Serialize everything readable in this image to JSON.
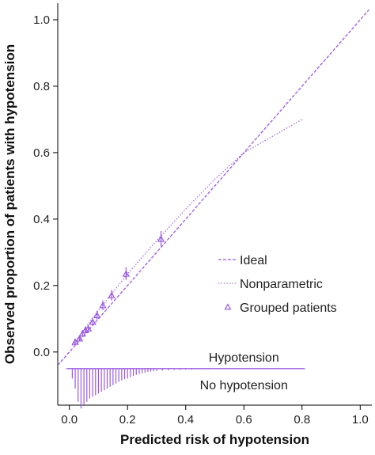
{
  "chart_data": {
    "type": "scatter",
    "xlabel": "Predicted risk of hypotension",
    "ylabel": "Observed proportion of patients with hypotension",
    "xlim": [
      -0.04,
      1.04
    ],
    "ylim": [
      -0.16,
      1.05
    ],
    "x_ticks": [
      0.0,
      0.2,
      0.4,
      0.6,
      0.8,
      1.0
    ],
    "x_tick_labels": [
      "0.0",
      "0.2",
      "0.4",
      "0.6",
      "0.8",
      "1.0"
    ],
    "y_ticks": [
      0.0,
      0.2,
      0.4,
      0.6,
      0.8,
      1.0
    ],
    "y_tick_labels": [
      "0.0",
      "0.2",
      "0.4",
      "0.6",
      "0.8",
      "1.0"
    ],
    "grid": false,
    "legend_position": "lower-right",
    "series_color": "#9b59e0",
    "series": [
      {
        "name": "Ideal",
        "style": "dashed",
        "x": [
          -0.04,
          1.03
        ],
        "y": [
          -0.04,
          1.03
        ]
      },
      {
        "name": "Nonparametric",
        "style": "dotted",
        "x": [
          0.01,
          0.1,
          0.2,
          0.3,
          0.4,
          0.5,
          0.6,
          0.7,
          0.8
        ],
        "y": [
          0.02,
          0.125,
          0.235,
          0.335,
          0.43,
          0.52,
          0.6,
          0.65,
          0.7
        ]
      },
      {
        "name": "Grouped patients",
        "style": "triangle-marker",
        "x": [
          0.02,
          0.035,
          0.045,
          0.055,
          0.065,
          0.08,
          0.095,
          0.115,
          0.145,
          0.195,
          0.315
        ],
        "y": [
          0.03,
          0.04,
          0.055,
          0.065,
          0.07,
          0.09,
          0.11,
          0.14,
          0.17,
          0.235,
          0.34
        ],
        "err_low": [
          0.02,
          0.032,
          0.045,
          0.055,
          0.06,
          0.08,
          0.098,
          0.126,
          0.155,
          0.217,
          0.318
        ],
        "err_high": [
          0.04,
          0.05,
          0.066,
          0.077,
          0.082,
          0.102,
          0.124,
          0.155,
          0.187,
          0.255,
          0.364
        ]
      }
    ],
    "spike_histogram": {
      "baseline_y": -0.05,
      "bins_x": [
        0.01,
        0.02,
        0.03,
        0.04,
        0.05,
        0.06,
        0.07,
        0.08,
        0.09,
        0.1,
        0.11,
        0.12,
        0.13,
        0.14,
        0.15,
        0.16,
        0.17,
        0.18,
        0.19,
        0.2,
        0.21,
        0.22,
        0.23,
        0.24,
        0.25,
        0.26,
        0.27,
        0.28,
        0.29,
        0.3,
        0.32,
        0.34,
        0.36,
        0.38,
        0.4,
        0.42,
        0.44,
        0.46,
        0.48,
        0.5
      ],
      "down_heights": [
        0.03,
        0.06,
        0.1,
        0.12,
        0.11,
        0.1,
        0.09,
        0.085,
        0.08,
        0.075,
        0.07,
        0.065,
        0.06,
        0.055,
        0.05,
        0.045,
        0.04,
        0.036,
        0.032,
        0.03,
        0.026,
        0.022,
        0.019,
        0.016,
        0.014,
        0.012,
        0.01,
        0.009,
        0.008,
        0.007,
        0.006,
        0.005,
        0.004,
        0.004,
        0.003,
        0.003,
        0.002,
        0.002,
        0.002,
        0.001
      ],
      "line_x_range": [
        -0.01,
        0.81
      ],
      "label_above": "Hypotension",
      "label_below": "No hypotension"
    }
  },
  "legend": {
    "items": [
      {
        "label": "Ideal",
        "style": "dashed"
      },
      {
        "label": "Nonparametric",
        "style": "dotted"
      },
      {
        "label": "Grouped patients",
        "style": "triangle-marker"
      }
    ]
  }
}
